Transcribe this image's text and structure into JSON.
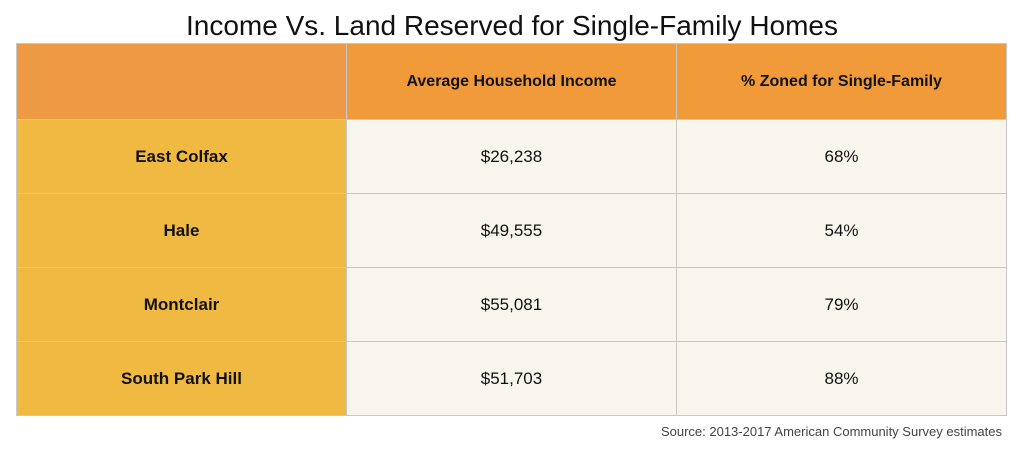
{
  "chart_data": {
    "type": "table",
    "title": "Income Vs. Land Reserved for Single-Family Homes",
    "columns": [
      "",
      "Average Household Income",
      "% Zoned for Single-Family"
    ],
    "rows": [
      {
        "neighborhood": "East Colfax",
        "income": "$26,238",
        "zoned": "68%"
      },
      {
        "neighborhood": "Hale",
        "income": "$49,555",
        "zoned": "54%"
      },
      {
        "neighborhood": "Montclair",
        "income": "$55,081",
        "zoned": "79%"
      },
      {
        "neighborhood": "South Park Hill",
        "income": "$51,703",
        "zoned": "88%"
      }
    ],
    "source": "Source: 2013-2017 American Community Survey estimates"
  },
  "colors": {
    "header": "#f09a3a",
    "row_header": "#f0b942",
    "cell": "#f8f6ec",
    "border": "#c8c8c8"
  }
}
